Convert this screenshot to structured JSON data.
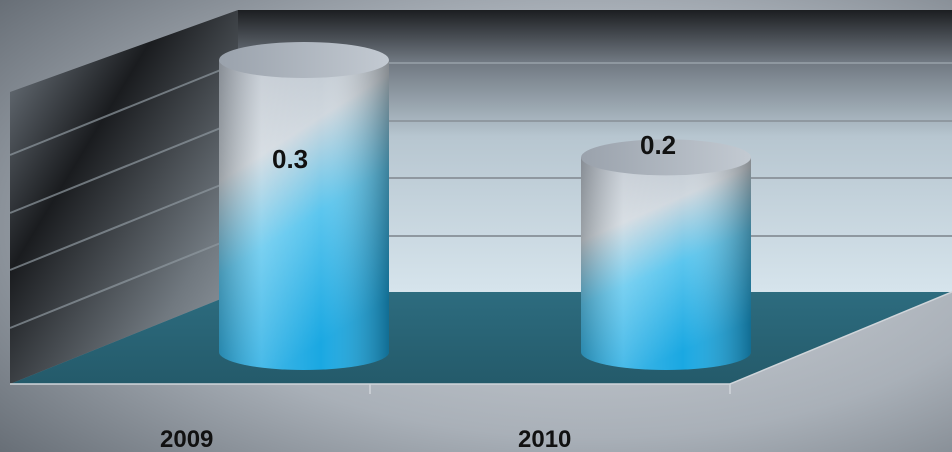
{
  "chart_data": {
    "type": "bar",
    "style": "3d-cylinder",
    "categories": [
      "2009",
      "2010"
    ],
    "series": [
      {
        "values": [
          0.3,
          0.2
        ]
      }
    ],
    "data_labels": [
      "0.3",
      "0.2"
    ],
    "title": "",
    "xlabel": "",
    "ylabel": "",
    "grid": true,
    "legend": "none"
  },
  "colors": {
    "background_dark": "#5f6770",
    "background_light": "#c7ccd2",
    "back_wall_top": "#1a1c1f",
    "back_wall_light": "#d9e6ee",
    "floor": "#2a6577",
    "bar_top": "#a8b0bb",
    "bar_bottom": "#1fb2ea",
    "gridline": "#8f98a0"
  }
}
